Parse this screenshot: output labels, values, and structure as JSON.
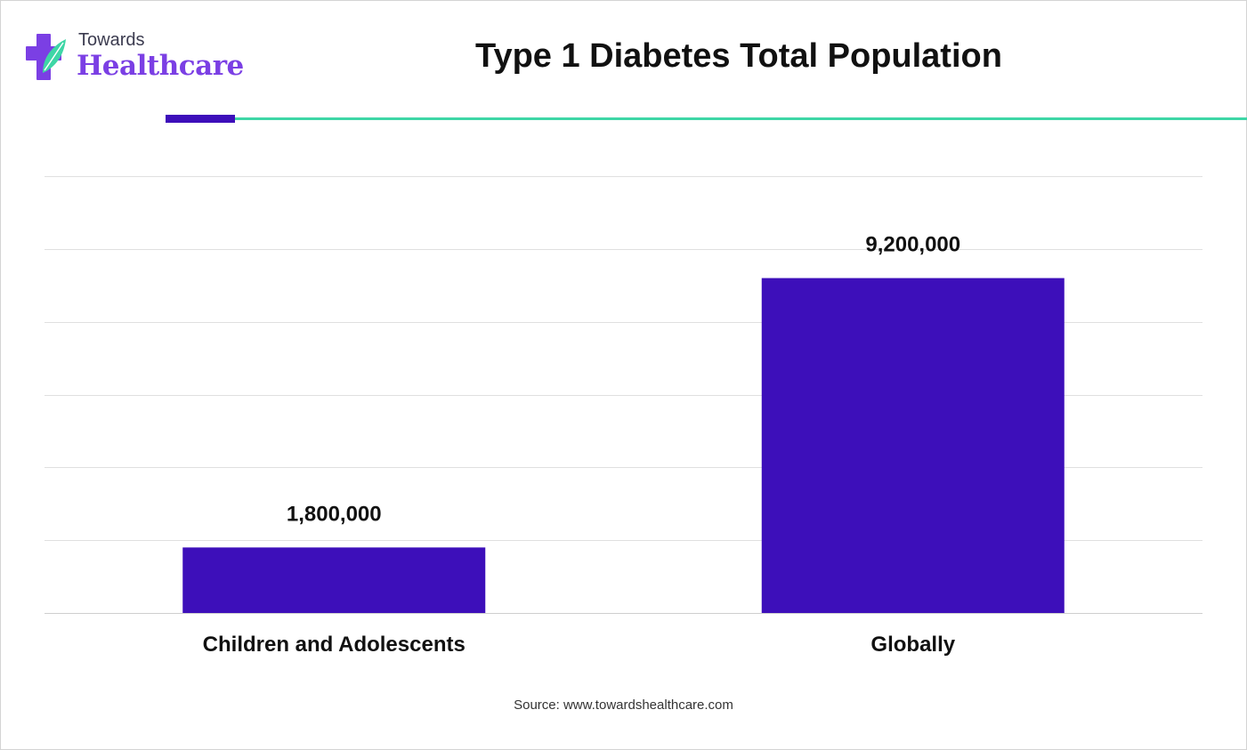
{
  "logo": {
    "small_text": "Towards",
    "big_text": "Healthcare",
    "cross_color": "#7b3fe4",
    "leaf_color": "#3ed6a6"
  },
  "header": {
    "title": "Type 1 Diabetes Total Population",
    "accent_bar_color": "#3d0fba",
    "accent_line_color": "#3ed6a6"
  },
  "chart_data": {
    "type": "bar",
    "categories": [
      "Children and Adolescents",
      "Globally"
    ],
    "values": [
      1800000,
      9200000
    ],
    "value_labels": [
      "1,800,000",
      "9,200,000"
    ],
    "title": "Type 1 Diabetes Total Population",
    "xlabel": "",
    "ylabel": "",
    "ylim": [
      0,
      12000000
    ],
    "grid": true,
    "legend": "none",
    "bar_color": "#3d0fba"
  },
  "footer": {
    "source": "Source: www.towardshealthcare.com"
  }
}
